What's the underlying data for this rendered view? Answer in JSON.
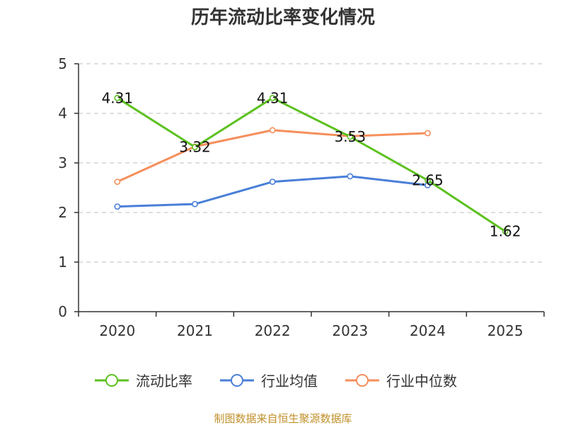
{
  "chart_data": {
    "type": "line",
    "title": "历年流动比率变化情况",
    "categories": [
      "2020",
      "2021",
      "2022",
      "2023",
      "2024",
      "2025"
    ],
    "ylim": [
      0,
      5
    ],
    "yticks": [
      "0",
      "1",
      "2",
      "3",
      "4",
      "5"
    ],
    "grid": true,
    "legend_position": "bottom",
    "series": [
      {
        "name": "流动比率",
        "color": "#5cc11f",
        "values": [
          4.31,
          3.32,
          4.31,
          3.53,
          2.65,
          1.62
        ],
        "labels": [
          "4.31",
          "3.32",
          "4.31",
          "3.53",
          "2.65",
          "1.62"
        ]
      },
      {
        "name": "行业均值",
        "color": "#4a7fd8",
        "values": [
          2.12,
          2.17,
          2.62,
          2.73,
          2.55,
          null
        ]
      },
      {
        "name": "行业中位数",
        "color": "#f58f5c",
        "values": [
          2.62,
          3.33,
          3.66,
          3.54,
          3.6,
          null
        ]
      }
    ]
  },
  "footer": {
    "source": "制图数据来自恒生聚源数据库"
  }
}
